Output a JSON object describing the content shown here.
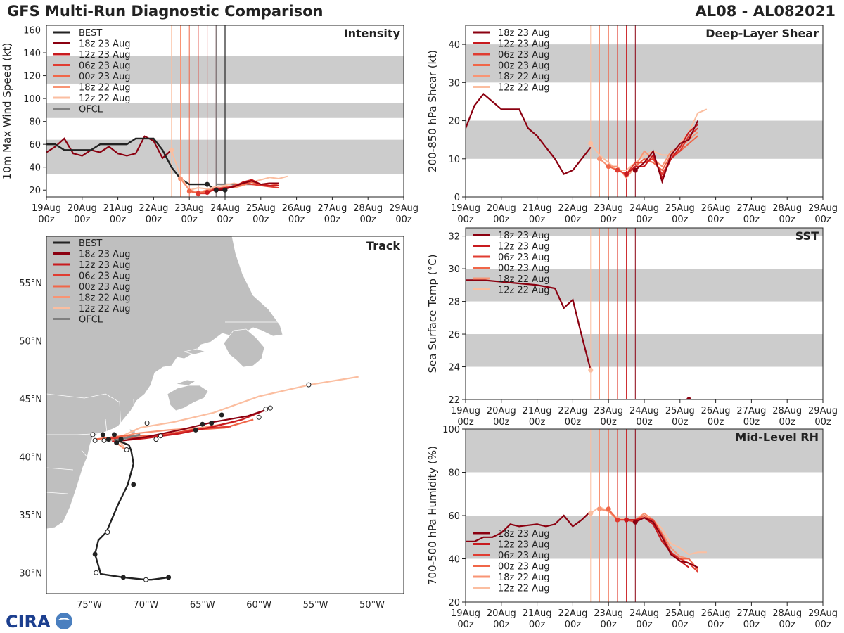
{
  "header": {
    "title": "GFS Multi-Run Diagnostic Comparison",
    "storm": "AL08 - AL082021"
  },
  "logo": {
    "text": "CIRA"
  },
  "colors": {
    "best": "#222222",
    "ofcl": "#808080",
    "band": "#cccccc",
    "runs": [
      "#8b0010",
      "#c81a1e",
      "#e03c31",
      "#f06648",
      "#f89474",
      "#fbbea0"
    ],
    "land": "#bfbfbf",
    "ocean": "#ffffff"
  },
  "run_legend": [
    "18z 23 Aug",
    "12z 23 Aug",
    "06z 23 Aug",
    "00z 23 Aug",
    "18z 22 Aug",
    "12z 22 Aug"
  ],
  "time_axis": {
    "days": [
      "19Aug",
      "20Aug",
      "21Aug",
      "22Aug",
      "23Aug",
      "24Aug",
      "25Aug",
      "26Aug",
      "27Aug",
      "28Aug",
      "29Aug"
    ],
    "hour": "00z",
    "run_init_days": [
      3.5,
      3.75,
      4.0,
      4.25,
      4.5,
      4.75
    ]
  },
  "chart_data": [
    {
      "id": "intensity",
      "type": "line",
      "title": "Intensity",
      "ylabel": "10m Max Wind Speed (kt)",
      "xlabel": "",
      "ylim": [
        14,
        164
      ],
      "yticks": [
        20,
        40,
        60,
        80,
        100,
        120,
        140,
        160
      ],
      "bands": [
        [
          34,
          64
        ],
        [
          83,
          96
        ],
        [
          113,
          137
        ]
      ],
      "legend": [
        "BEST",
        "18z 23 Aug",
        "12z 23 Aug",
        "06z 23 Aug",
        "00z 23 Aug",
        "18z 22 Aug",
        "12z 22 Aug",
        "OFCL"
      ],
      "best": {
        "name": "BEST",
        "x": [
          0,
          0.25,
          0.5,
          0.75,
          1,
          1.25,
          1.5,
          1.75,
          2,
          2.25,
          2.5,
          2.75,
          3,
          3.25,
          3.5,
          3.75,
          4,
          4.25,
          4.5,
          4.75,
          5
        ],
        "y": [
          60,
          60,
          55,
          55,
          55,
          55,
          60,
          60,
          60,
          60,
          65,
          65,
          65,
          55,
          40,
          30,
          25,
          25,
          25,
          20,
          20
        ]
      },
      "best_markers": {
        "x": [
          4.5,
          4.75,
          5.0
        ],
        "y": [
          25,
          20,
          20
        ]
      },
      "ofcl": {
        "name": "OFCL",
        "x": [
          4.75,
          5.0,
          5.5,
          6.0
        ],
        "y": [
          25,
          25,
          25,
          25
        ]
      },
      "history_run": {
        "x": [
          0,
          0.25,
          0.5,
          0.75,
          1,
          1.25,
          1.5,
          1.75,
          2,
          2.25,
          2.5,
          2.75,
          3,
          3.25,
          3.5
        ],
        "y": [
          53,
          58,
          65,
          52,
          50,
          55,
          53,
          58,
          52,
          50,
          52,
          67,
          63,
          48,
          55
        ]
      },
      "series": [
        {
          "name": "18z 23 Aug",
          "x": [
            4.75,
            5.0,
            5.25,
            5.5,
            5.75,
            6.0,
            6.25,
            6.5
          ],
          "y": [
            20,
            21,
            23,
            26,
            28,
            25,
            26,
            26
          ]
        },
        {
          "name": "12z 23 Aug",
          "x": [
            4.5,
            4.75,
            5.0,
            5.25,
            5.5,
            5.75,
            6.0,
            6.25,
            6.5
          ],
          "y": [
            18,
            21,
            22,
            23,
            27,
            29,
            25,
            24,
            24
          ]
        },
        {
          "name": "06z 23 Aug",
          "x": [
            4.25,
            4.5,
            4.75,
            5.0,
            5.25,
            5.5,
            5.75,
            6.0,
            6.25,
            6.5
          ],
          "y": [
            17,
            17,
            22,
            21,
            24,
            26,
            25,
            24,
            23,
            22
          ]
        },
        {
          "name": "00z 23 Aug",
          "x": [
            4.0,
            4.25,
            4.5,
            4.75,
            5.0,
            5.25,
            5.5,
            5.75,
            6.0,
            6.25,
            6.5
          ],
          "y": [
            19,
            17,
            19,
            21,
            22,
            23,
            25,
            27,
            24,
            26,
            24
          ]
        },
        {
          "name": "18z 22 Aug",
          "x": [
            3.75,
            4.0,
            4.25,
            4.5,
            4.75,
            5.0,
            5.25,
            5.5,
            5.75,
            6.0,
            6.25
          ],
          "y": [
            30,
            20,
            18,
            20,
            21,
            23,
            22,
            24,
            27,
            25,
            26
          ]
        },
        {
          "name": "12z 22 Aug",
          "x": [
            3.5,
            3.75,
            4.0,
            4.25,
            4.5,
            4.75,
            5.0,
            5.25,
            5.5,
            5.75,
            6.0,
            6.25,
            6.5,
            6.75
          ],
          "y": [
            55,
            32,
            20,
            22,
            21,
            23,
            24,
            26,
            24,
            27,
            29,
            31,
            30,
            32
          ]
        }
      ]
    },
    {
      "id": "shear",
      "type": "line",
      "title": "Deep-Layer Shear",
      "ylabel": "200-850 hPa Shear (kt)",
      "xlabel": "",
      "ylim": [
        0,
        45
      ],
      "yticks": [
        0,
        10,
        20,
        30,
        40
      ],
      "bands": [
        [
          10,
          20
        ],
        [
          30,
          40
        ]
      ],
      "legend": [
        "18z 23 Aug",
        "12z 23 Aug",
        "06z 23 Aug",
        "00z 23 Aug",
        "18z 22 Aug",
        "12z 22 Aug"
      ],
      "history_run": {
        "x": [
          0,
          0.25,
          0.5,
          0.75,
          1,
          1.25,
          1.5,
          1.75,
          2,
          2.25,
          2.5,
          2.75,
          3,
          3.25,
          3.5
        ],
        "y": [
          18,
          24,
          27,
          25,
          23,
          23,
          23,
          18,
          16,
          13,
          10,
          6,
          7,
          10,
          13
        ]
      },
      "series": [
        {
          "name": "18z 23 Aug",
          "x": [
            4.75,
            5.0,
            5.25,
            5.5,
            5.75,
            6.0,
            6.25,
            6.5
          ],
          "y": [
            7,
            9,
            12,
            4,
            11,
            14,
            15,
            20
          ]
        },
        {
          "name": "12z 23 Aug",
          "x": [
            4.5,
            4.75,
            5.0,
            5.25,
            5.5,
            5.75,
            6.0,
            6.25,
            6.5
          ],
          "y": [
            6,
            8,
            8,
            11,
            5,
            10,
            13,
            17,
            19
          ]
        },
        {
          "name": "06z 23 Aug",
          "x": [
            4.25,
            4.5,
            4.75,
            5.0,
            5.25,
            5.5,
            5.75,
            6.0,
            6.25,
            6.5
          ],
          "y": [
            7,
            6,
            9,
            9,
            10,
            6,
            10,
            12,
            16,
            18
          ]
        },
        {
          "name": "00z 23 Aug",
          "x": [
            4.0,
            4.25,
            4.5,
            4.75,
            5.0,
            5.25,
            5.5,
            5.75,
            6.0,
            6.25,
            6.5
          ],
          "y": [
            8,
            7,
            6,
            8,
            10,
            9,
            7,
            11,
            12,
            14,
            16
          ]
        },
        {
          "name": "18z 22 Aug",
          "x": [
            3.75,
            4.0,
            4.25,
            4.5,
            4.75,
            5.0,
            5.25,
            5.5,
            5.75,
            6.0,
            6.25,
            6.5
          ],
          "y": [
            10,
            8,
            8,
            5,
            8,
            12,
            10,
            8,
            12,
            13,
            15,
            17
          ]
        },
        {
          "name": "12z 22 Aug",
          "x": [
            3.5,
            3.75,
            4.0,
            4.25,
            4.5,
            4.75,
            5.0,
            5.25,
            5.5,
            5.75,
            6.0,
            6.25,
            6.5,
            6.75
          ],
          "y": [
            14,
            11,
            9,
            7,
            7,
            9,
            11,
            12,
            11,
            11,
            14,
            17,
            22,
            23
          ]
        }
      ]
    },
    {
      "id": "sst",
      "type": "line",
      "title": "SST",
      "ylabel": "Sea Surface Temp (°C)",
      "xlabel": "",
      "ylim": [
        22,
        32.5
      ],
      "yticks": [
        22,
        24,
        26,
        28,
        30,
        32
      ],
      "bands": [
        [
          24,
          26
        ],
        [
          28,
          30
        ],
        [
          32,
          32.5
        ]
      ],
      "legend": [
        "18z 23 Aug",
        "12z 23 Aug",
        "06z 23 Aug",
        "00z 23 Aug",
        "18z 22 Aug",
        "12z 22 Aug"
      ],
      "history_run": {
        "x": [
          0,
          0.5,
          1,
          1.5,
          2,
          2.5,
          2.75,
          3.0,
          3.25,
          3.5
        ],
        "y": [
          29.3,
          29.3,
          29.2,
          29.1,
          29.0,
          28.8,
          27.6,
          28.1,
          25.9,
          23.8
        ]
      },
      "series": [
        {
          "name": "12z 22 Aug",
          "x": [
            3.5
          ],
          "y": [
            23.8
          ]
        },
        {
          "name": "18z 23 Aug",
          "x": [
            6.25
          ],
          "y": [
            22.0
          ]
        }
      ]
    },
    {
      "id": "rh",
      "type": "line",
      "title": "Mid-Level RH",
      "ylabel": "700-500 hPa Humidity (%)",
      "xlabel": "",
      "ylim": [
        20,
        100
      ],
      "yticks": [
        20,
        40,
        60,
        80,
        100
      ],
      "bands": [
        [
          40,
          60
        ],
        [
          80,
          100
        ]
      ],
      "legend": [
        "18z 23 Aug",
        "12z 23 Aug",
        "06z 23 Aug",
        "00z 23 Aug",
        "18z 22 Aug",
        "12z 22 Aug"
      ],
      "history_run": {
        "x": [
          0,
          0.25,
          0.5,
          0.75,
          1,
          1.25,
          1.5,
          1.75,
          2,
          2.25,
          2.5,
          2.75,
          3,
          3.25,
          3.5
        ],
        "y": [
          48,
          48,
          50,
          50,
          52,
          56,
          55,
          55.5,
          56,
          55,
          56,
          60,
          55,
          58,
          62
        ]
      },
      "series": [
        {
          "name": "18z 23 Aug",
          "x": [
            4.75,
            5.0,
            5.25,
            5.5,
            5.75,
            6.0,
            6.25,
            6.5
          ],
          "y": [
            57,
            59,
            57,
            50,
            42,
            39,
            38,
            36
          ]
        },
        {
          "name": "12z 23 Aug",
          "x": [
            4.5,
            4.75,
            5.0,
            5.25,
            5.5,
            5.75,
            6.0,
            6.25
          ],
          "y": [
            58,
            58,
            59,
            56,
            48,
            43,
            39,
            36
          ]
        },
        {
          "name": "06z 23 Aug",
          "x": [
            4.25,
            4.5,
            4.75,
            5.0,
            5.25,
            5.5,
            5.75,
            6.0,
            6.25,
            6.5
          ],
          "y": [
            58,
            58,
            57,
            59,
            58,
            51,
            43,
            40,
            38,
            34
          ]
        },
        {
          "name": "00z 23 Aug",
          "x": [
            4.0,
            4.25,
            4.5,
            4.75,
            5.0,
            5.25,
            5.5,
            5.75,
            6.0,
            6.25,
            6.5
          ],
          "y": [
            63,
            58,
            58,
            58,
            60,
            57,
            50,
            42,
            40,
            40,
            35
          ]
        },
        {
          "name": "18z 22 Aug",
          "x": [
            3.75,
            4.0,
            4.25,
            4.5,
            4.75,
            5.0,
            5.25,
            5.5,
            5.75,
            6.0,
            6.25
          ],
          "y": [
            63,
            62,
            58,
            58,
            58,
            61,
            58,
            52,
            45,
            41,
            40
          ]
        },
        {
          "name": "12z 22 Aug",
          "x": [
            3.5,
            3.75,
            4.0,
            4.25,
            4.5,
            4.75,
            5.0,
            5.25,
            5.5,
            5.75,
            6.0,
            6.25,
            6.5,
            6.75
          ],
          "y": [
            61,
            64,
            62,
            59,
            58,
            58,
            60,
            58,
            54,
            47,
            45,
            42,
            43,
            43
          ]
        }
      ]
    },
    {
      "id": "track",
      "type": "scatter",
      "title": "Track",
      "xlabel": "",
      "ylabel": "",
      "xlim": [
        -78.8,
        -47.2
      ],
      "ylim": [
        28.2,
        59
      ],
      "xticks": [
        -75,
        -70,
        -65,
        -60,
        -55,
        -50
      ],
      "xtick_labels": [
        "75°W",
        "70°W",
        "65°W",
        "60°W",
        "55°W",
        "50°W"
      ],
      "yticks": [
        30,
        35,
        40,
        45,
        50,
        55
      ],
      "ytick_labels": [
        "30°N",
        "35°N",
        "40°N",
        "45°N",
        "50°N",
        "55°N"
      ],
      "legend": [
        "BEST",
        "18z 23 Aug",
        "12z 23 Aug",
        "06z 23 Aug",
        "00z 23 Aug",
        "18z 22 Aug",
        "12z 22 Aug",
        "OFCL"
      ],
      "best": {
        "name": "BEST",
        "lon": [
          -68.0,
          -69.5,
          -70.0,
          -72.0,
          -74.0,
          -74.5,
          -74.2,
          -73.5,
          -72.5,
          -71.6,
          -71.1,
          -71.3,
          -71.5,
          -72.0,
          -72.5,
          -72.8
        ],
        "lat": [
          29.6,
          29.4,
          29.4,
          29.6,
          29.9,
          31.6,
          32.8,
          33.5,
          35.8,
          37.6,
          39.4,
          40.5,
          41.0,
          41.2,
          41.4,
          41.5
        ]
      },
      "best_filled": {
        "lon": [
          -68.0,
          -72.0,
          -74.5,
          -71.1
        ],
        "lat": [
          29.6,
          29.6,
          31.6,
          37.6
        ]
      },
      "best_open": {
        "lon": [
          -70.0,
          -74.4,
          -73.4
        ],
        "lat": [
          29.4,
          30.0,
          33.5
        ]
      },
      "ofcl": {
        "name": "OFCL",
        "lon": [
          -72.8,
          -70.5
        ],
        "lat": [
          41.4,
          41.9
        ]
      },
      "series": [
        {
          "name": "18z 23 Aug",
          "lon": [
            -72.0,
            -70.0,
            -67.0,
            -64.0,
            -61.0,
            -59.2
          ],
          "lat": [
            41.4,
            41.7,
            42.3,
            43.0,
            43.5,
            44.1
          ]
        },
        {
          "name": "12z 23 Aug",
          "lon": [
            -73.0,
            -70.0,
            -67.0,
            -64.0,
            -61.5,
            -59.5
          ],
          "lat": [
            41.3,
            41.6,
            42.0,
            42.6,
            43.2,
            44.0
          ]
        },
        {
          "name": "06z 23 Aug",
          "lon": [
            -73.5,
            -71.0,
            -68.0,
            -65.5,
            -62.5
          ],
          "lat": [
            41.6,
            41.6,
            41.9,
            42.4,
            42.6
          ]
        },
        {
          "name": "00z 23 Aug",
          "lon": [
            -74.5,
            -72.0,
            -69.0,
            -66.0,
            -63.0,
            -60.5
          ],
          "lat": [
            41.5,
            41.8,
            41.8,
            42.3,
            42.5,
            43.2
          ]
        },
        {
          "name": "18z 22 Aug",
          "lon": [
            -71.8,
            -73.0,
            -71.0,
            -68.0,
            -65.0,
            -62.0
          ],
          "lat": [
            40.6,
            41.5,
            42.0,
            42.3,
            42.5,
            43.0
          ]
        },
        {
          "name": "12z 22 Aug",
          "lon": [
            -71.7,
            -72.5,
            -70.5,
            -67.5,
            -64.0,
            -60.0,
            -55.5,
            -51.2
          ],
          "lat": [
            40.5,
            41.6,
            42.5,
            43.0,
            43.8,
            45.2,
            46.2,
            46.9
          ]
        }
      ],
      "filled_markers": {
        "lon": [
          -73.8,
          -73.3,
          -72.8,
          -72.6,
          -65.6,
          -65.0,
          -64.2,
          -63.3,
          -72.2
        ],
        "lat": [
          41.9,
          41.5,
          41.9,
          41.2,
          42.3,
          42.8,
          42.9,
          43.6,
          41.5
        ]
      },
      "open_markers": {
        "lon": [
          -74.7,
          -74.5,
          -73.7,
          -69.9,
          -69.1,
          -68.7,
          -59.4,
          -59.0,
          -60.0,
          -55.6,
          -71.7
        ],
        "lat": [
          41.9,
          41.4,
          41.4,
          42.9,
          41.5,
          41.8,
          44.1,
          44.2,
          43.4,
          46.2,
          40.6
        ]
      }
    }
  ]
}
